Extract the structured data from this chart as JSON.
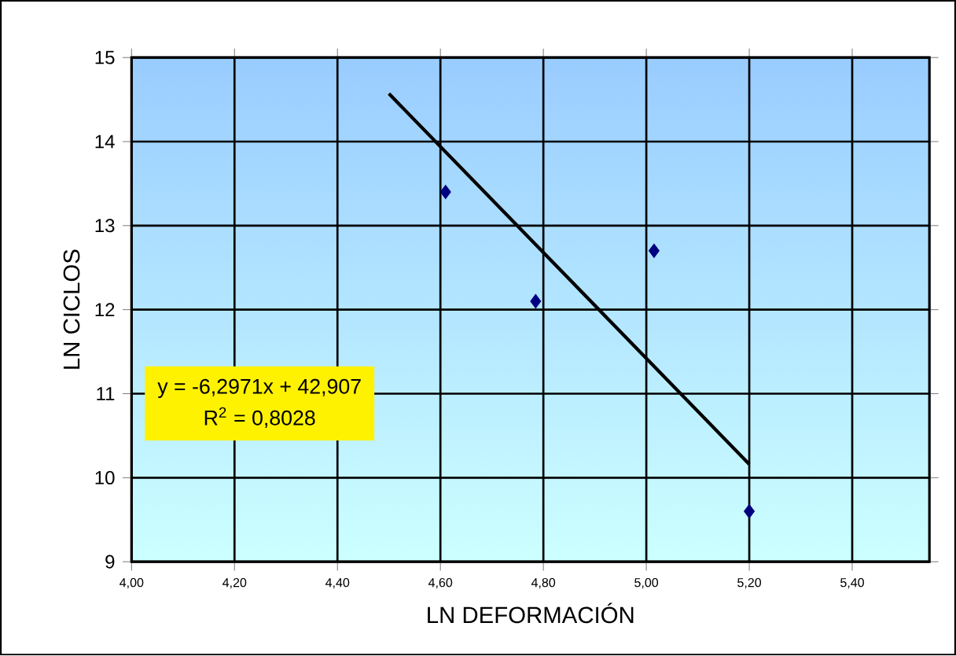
{
  "chart_data": {
    "type": "scatter",
    "xlabel": "LN DEFORMACIÓN",
    "ylabel": "LN CICLOS",
    "annotations": [
      "y = -6,2971x + 42,907",
      "R$^{2}$ = 0,8028"
    ],
    "xlim": [
      4.0,
      5.55
    ],
    "ylim": [
      9,
      15
    ],
    "xticks": [
      {
        "value": 4.0,
        "label": "4,00"
      },
      {
        "value": 4.2,
        "label": "4,20"
      },
      {
        "value": 4.4,
        "label": "4,40"
      },
      {
        "value": 4.6,
        "label": "4,60"
      },
      {
        "value": 4.8,
        "label": "4,80"
      },
      {
        "value": 5.0,
        "label": "5,00"
      },
      {
        "value": 5.2,
        "label": "5,20"
      },
      {
        "value": 5.4,
        "label": "5,40"
      }
    ],
    "yticks": [
      9,
      10,
      11,
      12,
      13,
      14,
      15
    ],
    "grid": true,
    "marker": "diamond",
    "series": [
      {
        "color": "#000080",
        "x": [
          4.61,
          4.785,
          5.015,
          5.2
        ],
        "values": [
          13.4,
          12.1,
          12.7,
          9.6
        ]
      },
      {
        "type": "line",
        "color": "#000000",
        "x": [
          4.5,
          5.2
        ],
        "values": [
          14.57,
          10.16
        ],
        "marker": "none"
      }
    ]
  }
}
